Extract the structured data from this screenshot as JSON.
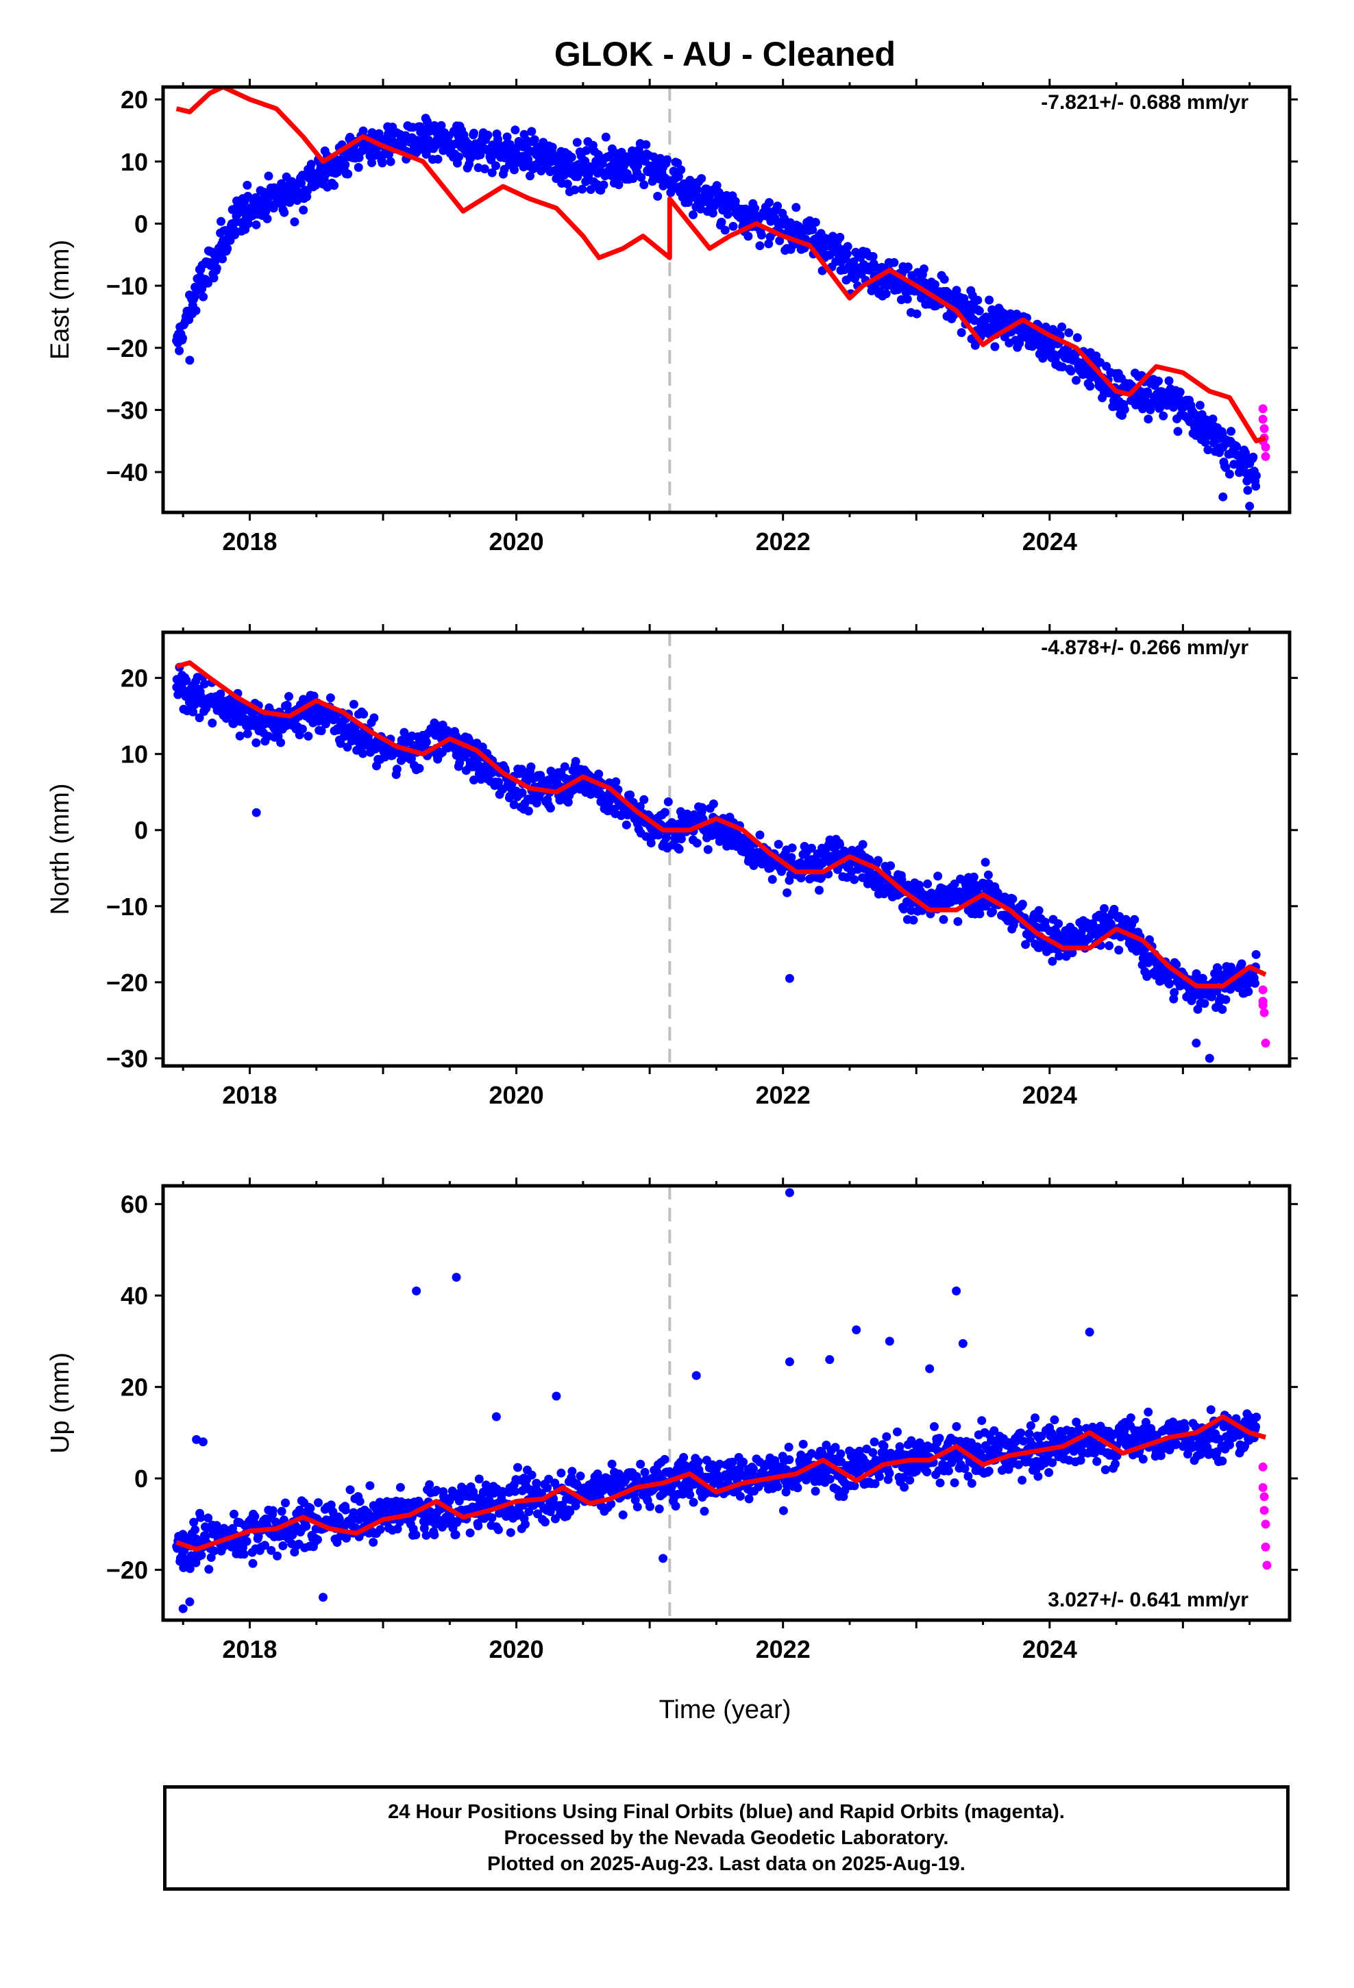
{
  "title": "GLOK  - AU - Cleaned",
  "xlabel": "Time (year)",
  "footer": {
    "line1": "24 Hour Positions Using Final Orbits (blue) and Rapid Orbits (magenta).",
    "line2": "Processed by the Nevada Geodetic Laboratory.",
    "line3": "Plotted on 2025-Aug-23. Last data on 2025-Aug-19."
  },
  "colors": {
    "final": "#0000ff",
    "rapid": "#ff00ff",
    "model": "#ff0000",
    "break": "#c0c0c0"
  },
  "chart_data": [
    {
      "type": "scatter",
      "component": "East",
      "ylabel": "East (mm)",
      "rate_label": "-7.821+/- 0.688 mm/yr",
      "xlim": [
        2017.35,
        2025.8
      ],
      "ylim": [
        -46.5,
        22
      ],
      "xticks": [
        2018,
        2020,
        2022,
        2024
      ],
      "xtick_labels": [
        "2018",
        "2020",
        "2022",
        "2024"
      ],
      "yticks": [
        -40,
        -30,
        -20,
        -10,
        0,
        10,
        20
      ],
      "ytick_labels": [
        "−40",
        "−30",
        "−20",
        "−10",
        "0",
        "10",
        "20"
      ],
      "break_year": 2021.15,
      "final_trend": [
        [
          2017.45,
          -20
        ],
        [
          2017.6,
          -11
        ],
        [
          2017.8,
          -3
        ],
        [
          2018.0,
          3
        ],
        [
          2018.3,
          5
        ],
        [
          2018.6,
          9
        ],
        [
          2018.8,
          12
        ],
        [
          2019.0,
          13
        ],
        [
          2019.4,
          13
        ],
        [
          2019.8,
          12
        ],
        [
          2020.1,
          11
        ],
        [
          2020.5,
          9
        ],
        [
          2020.9,
          10
        ],
        [
          2021.1,
          8
        ],
        [
          2021.4,
          4
        ],
        [
          2021.8,
          1
        ],
        [
          2022.2,
          -2
        ],
        [
          2022.6,
          -7
        ],
        [
          2023.0,
          -10
        ],
        [
          2023.4,
          -15
        ],
        [
          2023.8,
          -17
        ],
        [
          2024.2,
          -22
        ],
        [
          2024.5,
          -27
        ],
        [
          2024.9,
          -28
        ],
        [
          2025.2,
          -33
        ],
        [
          2025.55,
          -41
        ]
      ],
      "final_noise": 2.4,
      "final_n": 1500,
      "rapid_points": [
        [
          2025.6,
          -29.8
        ],
        [
          2025.6,
          -31.5
        ],
        [
          2025.61,
          -33
        ],
        [
          2025.61,
          -34.5
        ],
        [
          2025.62,
          -36
        ],
        [
          2025.62,
          -37.5
        ],
        [
          2025.6,
          -35
        ]
      ],
      "outliers": [
        [
          2017.55,
          -22
        ],
        [
          2025.5,
          -45.5
        ],
        [
          2025.3,
          -44
        ]
      ],
      "model": [
        [
          2017.45,
          18.5
        ],
        [
          2017.55,
          18
        ],
        [
          2017.7,
          21
        ],
        [
          2017.8,
          22
        ],
        [
          2018.0,
          20
        ],
        [
          2018.2,
          18.5
        ],
        [
          2018.4,
          14
        ],
        [
          2018.55,
          10
        ],
        [
          2018.7,
          12
        ],
        [
          2018.85,
          14
        ],
        [
          2019.0,
          12.5
        ],
        [
          2019.3,
          10
        ],
        [
          2019.45,
          6
        ],
        [
          2019.6,
          2
        ],
        [
          2019.75,
          4
        ],
        [
          2019.9,
          6
        ],
        [
          2020.1,
          4
        ],
        [
          2020.3,
          2.5
        ],
        [
          2020.5,
          -2
        ],
        [
          2020.62,
          -5.5
        ],
        [
          2020.8,
          -4
        ],
        [
          2020.95,
          -2
        ],
        [
          2021.15,
          -5.5
        ],
        [
          2021.15,
          4
        ],
        [
          2021.3,
          0
        ],
        [
          2021.45,
          -4
        ],
        [
          2021.6,
          -2
        ],
        [
          2021.8,
          0
        ],
        [
          2022.0,
          -2
        ],
        [
          2022.2,
          -3.5
        ],
        [
          2022.5,
          -12
        ],
        [
          2022.6,
          -10
        ],
        [
          2022.8,
          -7.5
        ],
        [
          2023.0,
          -10
        ],
        [
          2023.3,
          -14
        ],
        [
          2023.5,
          -19.5
        ],
        [
          2023.6,
          -18
        ],
        [
          2023.8,
          -15.5
        ],
        [
          2024.0,
          -18
        ],
        [
          2024.2,
          -20
        ],
        [
          2024.5,
          -27
        ],
        [
          2024.6,
          -27.5
        ],
        [
          2024.8,
          -23
        ],
        [
          2025.0,
          -24
        ],
        [
          2025.2,
          -27
        ],
        [
          2025.35,
          -28
        ],
        [
          2025.55,
          -35
        ],
        [
          2025.62,
          -34.5
        ]
      ]
    },
    {
      "type": "scatter",
      "component": "North",
      "ylabel": "North (mm)",
      "rate_label": "-4.878+/- 0.266 mm/yr",
      "xlim": [
        2017.35,
        2025.8
      ],
      "ylim": [
        -31,
        26
      ],
      "xticks": [
        2018,
        2020,
        2022,
        2024
      ],
      "xtick_labels": [
        "2018",
        "2020",
        "2022",
        "2024"
      ],
      "yticks": [
        -30,
        -20,
        -10,
        0,
        10,
        20
      ],
      "ytick_labels": [
        "−30",
        "−20",
        "−10",
        "0",
        "10",
        "20"
      ],
      "break_year": 2021.15,
      "final_trend": [
        [
          2017.45,
          19
        ],
        [
          2017.7,
          17
        ],
        [
          2018.0,
          15
        ],
        [
          2018.2,
          14
        ],
        [
          2018.5,
          16
        ],
        [
          2018.8,
          13
        ],
        [
          2019.1,
          10
        ],
        [
          2019.5,
          12
        ],
        [
          2019.8,
          8
        ],
        [
          2020.1,
          5
        ],
        [
          2020.5,
          7
        ],
        [
          2020.8,
          3
        ],
        [
          2021.1,
          0
        ],
        [
          2021.5,
          1
        ],
        [
          2021.8,
          -3
        ],
        [
          2022.1,
          -5
        ],
        [
          2022.5,
          -3
        ],
        [
          2022.8,
          -7
        ],
        [
          2023.1,
          -10
        ],
        [
          2023.5,
          -8
        ],
        [
          2023.8,
          -12
        ],
        [
          2024.1,
          -15
        ],
        [
          2024.5,
          -12
        ],
        [
          2024.8,
          -18
        ],
        [
          2025.1,
          -21
        ],
        [
          2025.55,
          -19
        ]
      ],
      "final_noise": 1.8,
      "final_n": 1500,
      "rapid_points": [
        [
          2025.6,
          -21
        ],
        [
          2025.6,
          -22.5
        ],
        [
          2025.61,
          -24
        ],
        [
          2025.62,
          -28
        ],
        [
          2025.6,
          -23
        ]
      ],
      "outliers": [
        [
          2018.05,
          2.3
        ],
        [
          2022.05,
          -19.5
        ],
        [
          2025.2,
          -30
        ],
        [
          2025.1,
          -28
        ]
      ],
      "model": [
        [
          2017.45,
          21.5
        ],
        [
          2017.55,
          22
        ],
        [
          2017.7,
          20
        ],
        [
          2017.9,
          17.5
        ],
        [
          2018.1,
          15.5
        ],
        [
          2018.3,
          15
        ],
        [
          2018.5,
          17
        ],
        [
          2018.7,
          15.5
        ],
        [
          2018.9,
          13
        ],
        [
          2019.1,
          11
        ],
        [
          2019.3,
          10
        ],
        [
          2019.5,
          12
        ],
        [
          2019.7,
          10.5
        ],
        [
          2019.9,
          7.5
        ],
        [
          2020.1,
          5.5
        ],
        [
          2020.3,
          5
        ],
        [
          2020.5,
          7
        ],
        [
          2020.7,
          5.5
        ],
        [
          2020.9,
          2.5
        ],
        [
          2021.1,
          0
        ],
        [
          2021.3,
          0
        ],
        [
          2021.5,
          1.5
        ],
        [
          2021.7,
          0
        ],
        [
          2021.9,
          -3
        ],
        [
          2022.1,
          -5.5
        ],
        [
          2022.3,
          -5.5
        ],
        [
          2022.5,
          -3.5
        ],
        [
          2022.7,
          -5
        ],
        [
          2022.9,
          -8
        ],
        [
          2023.1,
          -10.5
        ],
        [
          2023.3,
          -10.5
        ],
        [
          2023.5,
          -8.5
        ],
        [
          2023.7,
          -10.5
        ],
        [
          2023.9,
          -13.5
        ],
        [
          2024.1,
          -15.5
        ],
        [
          2024.3,
          -15.5
        ],
        [
          2024.5,
          -13
        ],
        [
          2024.7,
          -14.5
        ],
        [
          2024.9,
          -18
        ],
        [
          2025.1,
          -20.5
        ],
        [
          2025.3,
          -20.5
        ],
        [
          2025.5,
          -18
        ],
        [
          2025.62,
          -19
        ]
      ]
    },
    {
      "type": "scatter",
      "component": "Up",
      "ylabel": "Up (mm)",
      "rate_label": "3.027+/- 0.641 mm/yr",
      "xlim": [
        2017.35,
        2025.8
      ],
      "ylim": [
        -31,
        64
      ],
      "xticks": [
        2018,
        2020,
        2022,
        2024
      ],
      "xtick_labels": [
        "2018",
        "2020",
        "2022",
        "2024"
      ],
      "yticks": [
        -20,
        0,
        20,
        40,
        60
      ],
      "ytick_labels": [
        "−20",
        "0",
        "20",
        "40",
        "60"
      ],
      "break_year": 2021.15,
      "final_trend": [
        [
          2017.45,
          -15
        ],
        [
          2018.0,
          -12
        ],
        [
          2018.5,
          -10
        ],
        [
          2019.0,
          -8
        ],
        [
          2019.5,
          -7
        ],
        [
          2020.0,
          -5
        ],
        [
          2020.5,
          -3
        ],
        [
          2021.0,
          -1
        ],
        [
          2021.5,
          0
        ],
        [
          2022.0,
          1
        ],
        [
          2022.5,
          3
        ],
        [
          2023.0,
          4
        ],
        [
          2023.5,
          5
        ],
        [
          2024.0,
          7
        ],
        [
          2024.5,
          8
        ],
        [
          2025.0,
          9
        ],
        [
          2025.55,
          10
        ]
      ],
      "final_noise": 3.6,
      "final_n": 1500,
      "rapid_points": [
        [
          2025.6,
          2.5
        ],
        [
          2025.6,
          -2
        ],
        [
          2025.61,
          -4
        ],
        [
          2025.61,
          -7
        ],
        [
          2025.62,
          -10
        ],
        [
          2025.62,
          -15
        ],
        [
          2025.63,
          -19
        ]
      ],
      "outliers": [
        [
          2017.6,
          8.5
        ],
        [
          2017.65,
          8
        ],
        [
          2019.25,
          41
        ],
        [
          2019.55,
          44
        ],
        [
          2022.05,
          62.5
        ],
        [
          2023.3,
          41
        ],
        [
          2022.55,
          32.5
        ],
        [
          2022.8,
          30
        ],
        [
          2023.35,
          29.5
        ],
        [
          2024.3,
          32
        ],
        [
          2022.35,
          26
        ],
        [
          2022.05,
          25.5
        ],
        [
          2017.5,
          -28.5
        ],
        [
          2017.55,
          -27
        ],
        [
          2018.55,
          -26
        ],
        [
          2021.1,
          -17.5
        ],
        [
          2021.35,
          22.5
        ],
        [
          2023.1,
          24
        ],
        [
          2019.85,
          13.5
        ],
        [
          2020.3,
          18
        ]
      ],
      "model": [
        [
          2017.45,
          -14
        ],
        [
          2017.6,
          -15.5
        ],
        [
          2017.8,
          -13.5
        ],
        [
          2018.0,
          -11.5
        ],
        [
          2018.2,
          -11
        ],
        [
          2018.4,
          -8.5
        ],
        [
          2018.6,
          -11
        ],
        [
          2018.8,
          -12
        ],
        [
          2019.0,
          -9
        ],
        [
          2019.2,
          -8
        ],
        [
          2019.4,
          -5
        ],
        [
          2019.6,
          -8.5
        ],
        [
          2019.8,
          -7
        ],
        [
          2020.0,
          -5
        ],
        [
          2020.2,
          -4.5
        ],
        [
          2020.35,
          -2
        ],
        [
          2020.55,
          -5.5
        ],
        [
          2020.7,
          -4.5
        ],
        [
          2020.9,
          -2
        ],
        [
          2021.1,
          -1
        ],
        [
          2021.3,
          1
        ],
        [
          2021.5,
          -3
        ],
        [
          2021.7,
          -1
        ],
        [
          2021.9,
          0
        ],
        [
          2022.1,
          1
        ],
        [
          2022.3,
          4
        ],
        [
          2022.55,
          -0.5
        ],
        [
          2022.75,
          3
        ],
        [
          2022.95,
          4
        ],
        [
          2023.1,
          4
        ],
        [
          2023.3,
          7
        ],
        [
          2023.5,
          3
        ],
        [
          2023.7,
          5
        ],
        [
          2023.9,
          6
        ],
        [
          2024.1,
          7
        ],
        [
          2024.3,
          10
        ],
        [
          2024.55,
          5.5
        ],
        [
          2024.7,
          7
        ],
        [
          2024.9,
          9
        ],
        [
          2025.1,
          10
        ],
        [
          2025.3,
          13.5
        ],
        [
          2025.5,
          10
        ],
        [
          2025.62,
          9
        ]
      ]
    }
  ]
}
